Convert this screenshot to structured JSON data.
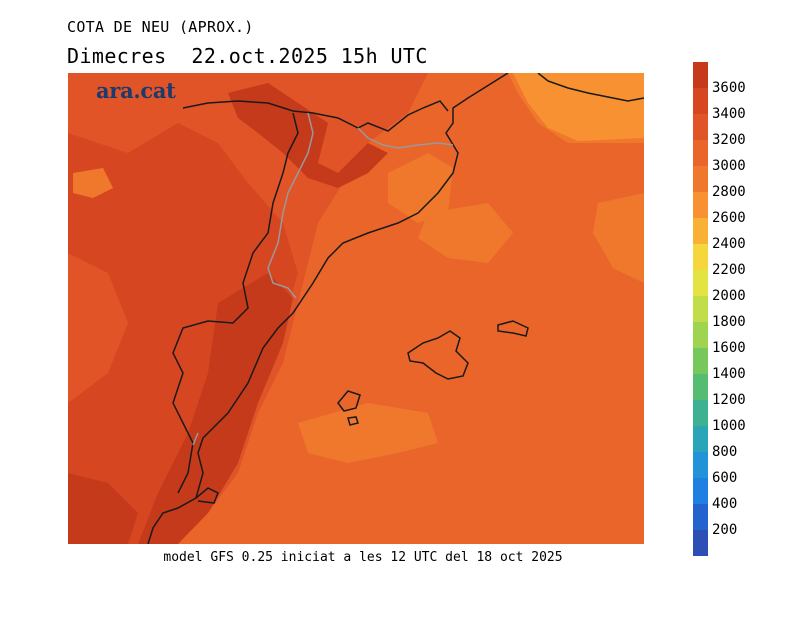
{
  "title": "COTA DE NEU (APROX.)",
  "subtitle": "Dimecres  22.oct.2025 15h UTC",
  "logo_text": "ara.cat",
  "footer": "model GFS 0.25 iniciat a les 12 UTC del 18 oct 2025",
  "colorbar": {
    "levels": [
      "3600",
      "3400",
      "3200",
      "3000",
      "2800",
      "2600",
      "2400",
      "2200",
      "2000",
      "1800",
      "1600",
      "1400",
      "1200",
      "1000",
      "800",
      "600",
      "400",
      "200"
    ],
    "colors": [
      "#c53a1b",
      "#d64721",
      "#e05427",
      "#ea652a",
      "#f0782d",
      "#f79131",
      "#f8b135",
      "#f5d63c",
      "#e3e344",
      "#c2dd4a",
      "#9fd450",
      "#77c85c",
      "#56bc72",
      "#3eb193",
      "#2aa5b8",
      "#2293d8",
      "#1f7fe3",
      "#2462cd",
      "#2b4fb5"
    ]
  },
  "map": {
    "field_colors": {
      "base": "#ea652a",
      "high": "#e05427",
      "higher": "#d64721",
      "highest": "#c53a1b",
      "low": "#f0782d",
      "lower": "#f79131"
    },
    "coast_color": "#1a1a1a",
    "border_color": "#999999"
  }
}
